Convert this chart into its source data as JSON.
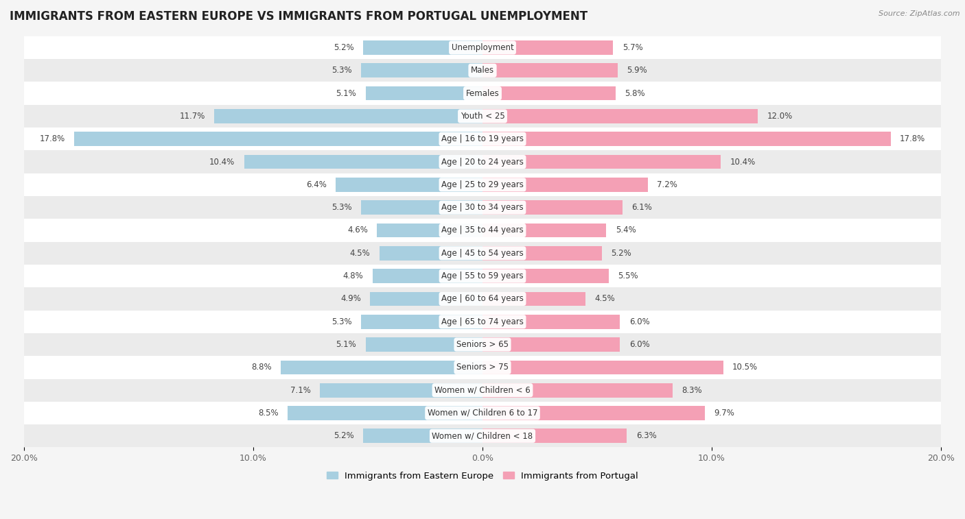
{
  "title": "IMMIGRANTS FROM EASTERN EUROPE VS IMMIGRANTS FROM PORTUGAL UNEMPLOYMENT",
  "source": "Source: ZipAtlas.com",
  "categories": [
    "Unemployment",
    "Males",
    "Females",
    "Youth < 25",
    "Age | 16 to 19 years",
    "Age | 20 to 24 years",
    "Age | 25 to 29 years",
    "Age | 30 to 34 years",
    "Age | 35 to 44 years",
    "Age | 45 to 54 years",
    "Age | 55 to 59 years",
    "Age | 60 to 64 years",
    "Age | 65 to 74 years",
    "Seniors > 65",
    "Seniors > 75",
    "Women w/ Children < 6",
    "Women w/ Children 6 to 17",
    "Women w/ Children < 18"
  ],
  "eastern_europe": [
    5.2,
    5.3,
    5.1,
    11.7,
    17.8,
    10.4,
    6.4,
    5.3,
    4.6,
    4.5,
    4.8,
    4.9,
    5.3,
    5.1,
    8.8,
    7.1,
    8.5,
    5.2
  ],
  "portugal": [
    5.7,
    5.9,
    5.8,
    12.0,
    17.8,
    10.4,
    7.2,
    6.1,
    5.4,
    5.2,
    5.5,
    4.5,
    6.0,
    6.0,
    10.5,
    8.3,
    9.7,
    6.3
  ],
  "color_eastern": "#a8cfe0",
  "color_portugal": "#f4a0b5",
  "row_color_light": "#f0f0f0",
  "row_color_dark": "#e0e0e0",
  "background_color": "#f5f5f5",
  "xlim": 20.0,
  "label_fontsize": 8.5,
  "value_fontsize": 8.5,
  "legend_label_eastern": "Immigrants from Eastern Europe",
  "legend_label_portugal": "Immigrants from Portugal",
  "title_fontsize": 12,
  "source_fontsize": 8
}
